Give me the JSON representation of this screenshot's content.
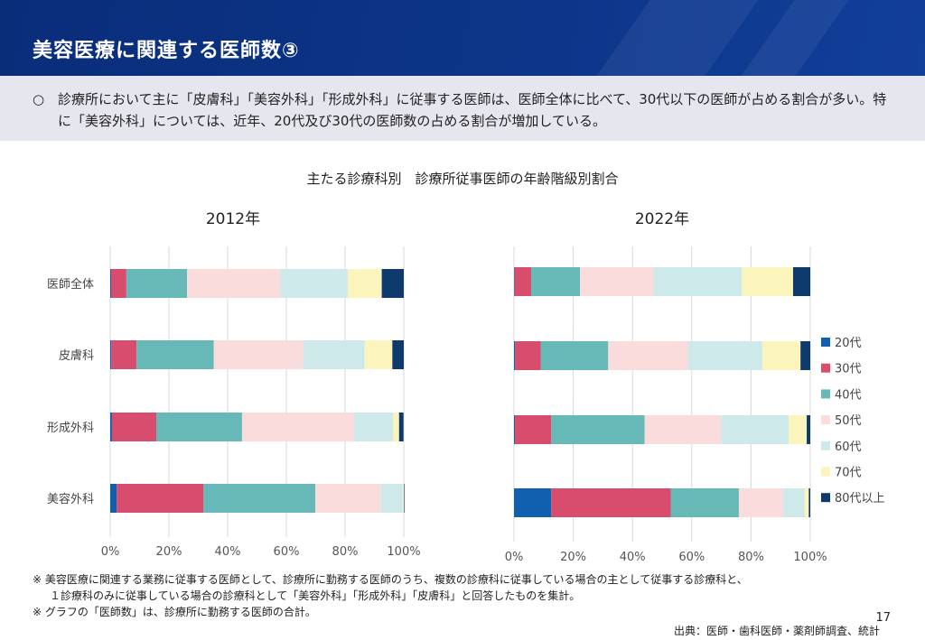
{
  "header": {
    "title": "美容医療に関連する医師数③"
  },
  "summary": {
    "bullet": "○",
    "text": "診療所において主に「皮膚科」「美容外科」「形成外科」に従事する医師は、医師全体に比べて、30代以下の医師が占める割合が多い。特に「美容外科」については、近年、20代及び30代の医師数の占める割合が増加している。"
  },
  "chart_title": "主たる診療科別　診療所従事医師の年齢階級別割合",
  "colors": {
    "20代": "#1160b0",
    "30代": "#d84d6d",
    "40代": "#66b9b7",
    "50代": "#fbdcdd",
    "60代": "#cde9e9",
    "70代": "#fbf4bc",
    "80代以上": "#0e3a6c"
  },
  "chart_data": [
    {
      "type": "bar",
      "orientation": "horizontal",
      "stacked": true,
      "title": "2012年",
      "categories": [
        "医師全体",
        "皮膚科",
        "形成外科",
        "美容外科"
      ],
      "xlim": [
        0,
        100
      ],
      "xticks": [
        "0%",
        "20%",
        "40%",
        "60%",
        "80%",
        "100%"
      ],
      "series": [
        {
          "name": "20代",
          "values": [
            0.3,
            0.4,
            0.6,
            2.2
          ]
        },
        {
          "name": "30代",
          "values": [
            5.2,
            8.6,
            15.1,
            29.6
          ]
        },
        {
          "name": "40代",
          "values": [
            20.7,
            26.3,
            29.2,
            38.1
          ]
        },
        {
          "name": "50代",
          "values": [
            31.8,
            30.4,
            38.2,
            22.3
          ]
        },
        {
          "name": "60代",
          "values": [
            22.9,
            21.0,
            13.2,
            7.5
          ]
        },
        {
          "name": "70代",
          "values": [
            11.6,
            9.4,
            2.1,
            0.3
          ]
        },
        {
          "name": "80代以上",
          "values": [
            7.5,
            3.9,
            1.5,
            0.2
          ]
        }
      ]
    },
    {
      "type": "bar",
      "orientation": "horizontal",
      "stacked": true,
      "title": "2022年",
      "categories": [
        "医師全体",
        "皮膚科",
        "形成外科",
        "美容外科"
      ],
      "xlim": [
        0,
        100
      ],
      "xticks": [
        "0%",
        "20%",
        "40%",
        "60%",
        "80%",
        "100%"
      ],
      "series": [
        {
          "name": "20代",
          "values": [
            0.2,
            0.4,
            0.3,
            12.6
          ]
        },
        {
          "name": "30代",
          "values": [
            5.6,
            8.6,
            12.3,
            40.3
          ]
        },
        {
          "name": "40代",
          "values": [
            16.5,
            22.8,
            31.5,
            23.0
          ]
        },
        {
          "name": "50代",
          "values": [
            24.8,
            26.9,
            25.8,
            15.0
          ]
        },
        {
          "name": "60代",
          "values": [
            29.8,
            25.1,
            22.8,
            7.2
          ]
        },
        {
          "name": "70代",
          "values": [
            17.3,
            12.9,
            6.1,
            1.4
          ]
        },
        {
          "name": "80代以上",
          "values": [
            5.8,
            3.3,
            1.2,
            0.5
          ]
        }
      ]
    }
  ],
  "legend": [
    "20代",
    "30代",
    "40代",
    "50代",
    "60代",
    "70代",
    "80代以上"
  ],
  "notes": [
    "※ 美容医療に関連する業務に従事する医師として、診療所に勤務する医師のうち、複数の診療科に従事している場合の主として従事する診療科と、",
    "１診療科のみに従事している場合の診療科として「美容外科」「形成外科」「皮膚科」と回答したものを集計。",
    "※ グラフの「医師数」は、診療所に勤務する医師の合計。"
  ],
  "source": "出典：医師・歯科医師・薬剤師調査、統計",
  "page_number": "17"
}
